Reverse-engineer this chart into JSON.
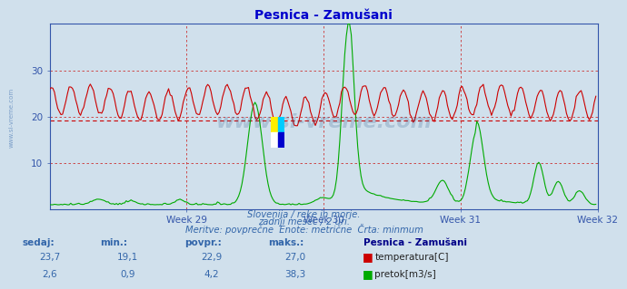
{
  "title": "Pesnica - Zamušani",
  "bg_color": "#d0e0ec",
  "plot_bg_color": "#d0e0ec",
  "temp_color": "#cc0000",
  "flow_color": "#00aa00",
  "min_line_color": "#cc0000",
  "min_line_value": 19.1,
  "x_tick_labels": [
    "Week 29",
    "Week 30",
    "Week 31",
    "Week 32"
  ],
  "ylim": [
    0,
    40
  ],
  "yticks": [
    10,
    20,
    30
  ],
  "n_points": 336,
  "subtitle1": "Slovenija / reke in morje.",
  "subtitle2": "zadnji mesec / 2 uri.",
  "subtitle3": "Meritve: povprečne  Enote: metrične  Črta: minmum",
  "footer_color": "#3366aa",
  "watermark_text": "www.si-vreme.com",
  "temp_sedaj": "23,7",
  "temp_min": "19,1",
  "temp_povpr": "22,9",
  "temp_maks": "27,0",
  "flow_sedaj": "2,6",
  "flow_min": "0,9",
  "flow_povpr": "4,2",
  "flow_maks": "38,3",
  "station": "Pesnica - Zamušani",
  "axis_color": "#3355aa",
  "title_color": "#0000cc",
  "grid_h_color": "#cc3333",
  "grid_v_color": "#cc3333",
  "left_label_color": "#3366aa"
}
